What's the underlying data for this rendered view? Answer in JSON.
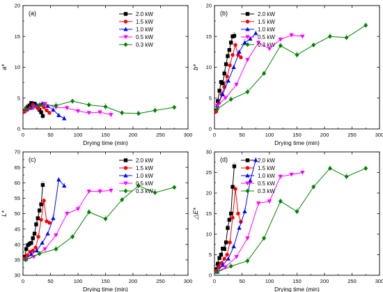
{
  "legend_order": [
    "2.0 kW",
    "1.5 kW",
    "1.0 kW",
    "0.5 kW",
    "0.3 kW"
  ],
  "series_style": {
    "2.0 kW": {
      "color": "#000000",
      "marker": "square"
    },
    "1.5 kW": {
      "color": "#ff0000",
      "marker": "circle"
    },
    "1.0 kW": {
      "color": "#0000ff",
      "marker": "triangle-up"
    },
    "0.5 kW": {
      "color": "#ff00ff",
      "marker": "triangle-down"
    },
    "0.3 kW": {
      "color": "#008000",
      "marker": "diamond"
    }
  },
  "chart_data": [
    {
      "type": "line",
      "panel_label": "(a)",
      "xlabel": "Drying time (min)",
      "ylabel": "a*",
      "xlim": [
        0,
        300
      ],
      "ylim": [
        0,
        20
      ],
      "xticks": [
        0,
        50,
        100,
        150,
        200,
        250,
        300
      ],
      "yticks": [
        0,
        5,
        10,
        15,
        20
      ],
      "legend_position": "top-right",
      "grid": false,
      "series": [
        {
          "name": "2.0 kW",
          "x": [
            3,
            6,
            9,
            12,
            15,
            18,
            21,
            24,
            27,
            30,
            33,
            36
          ],
          "y": [
            2.9,
            3.3,
            3.6,
            3.8,
            4.2,
            3.9,
            4.1,
            3.7,
            3.5,
            3.1,
            2.7,
            2.1
          ]
        },
        {
          "name": "1.5 kW",
          "x": [
            3,
            8,
            13,
            18,
            23,
            28,
            33,
            38,
            43,
            48
          ],
          "y": [
            2.8,
            3.1,
            3.4,
            3.9,
            3.7,
            3.3,
            3.9,
            3.5,
            3.0,
            2.6
          ]
        },
        {
          "name": "1.0 kW",
          "x": [
            5,
            15,
            25,
            35,
            45,
            55,
            65,
            75
          ],
          "y": [
            3.2,
            3.4,
            3.9,
            4.1,
            3.7,
            3.1,
            2.2,
            1.7
          ]
        },
        {
          "name": "0.5 kW",
          "x": [
            5,
            20,
            40,
            60,
            80,
            100,
            120,
            140,
            160
          ],
          "y": [
            3.0,
            3.5,
            4.1,
            3.5,
            3.4,
            2.9,
            2.6,
            2.7,
            2.3
          ]
        },
        {
          "name": "0.3 kW",
          "x": [
            5,
            30,
            60,
            90,
            120,
            150,
            180,
            210,
            240,
            275
          ],
          "y": [
            3.2,
            3.9,
            3.8,
            4.5,
            3.9,
            3.6,
            2.6,
            2.5,
            3.0,
            3.5
          ]
        }
      ]
    },
    {
      "type": "line",
      "panel_label": "(b)",
      "xlabel": "Drying time (min)",
      "ylabel": "b*",
      "xlim": [
        0,
        300
      ],
      "ylim": [
        0,
        20
      ],
      "xticks": [
        0,
        50,
        100,
        150,
        200,
        250,
        300
      ],
      "yticks": [
        0,
        5,
        10,
        15,
        20
      ],
      "legend_position": "top-left",
      "grid": false,
      "series": [
        {
          "name": "2.0 kW",
          "x": [
            3,
            6,
            9,
            12,
            15,
            18,
            21,
            24,
            27,
            30,
            33,
            36
          ],
          "y": [
            3.0,
            4.5,
            6.2,
            7.6,
            7.4,
            9.0,
            10.5,
            11.8,
            12.8,
            14.0,
            15.0,
            15.1
          ]
        },
        {
          "name": "1.5 kW",
          "x": [
            3,
            8,
            13,
            18,
            23,
            28,
            33,
            38,
            43,
            48
          ],
          "y": [
            2.8,
            4.2,
            5.6,
            6.8,
            8.5,
            10.3,
            12.0,
            13.6,
            12.0,
            11.6
          ]
        },
        {
          "name": "1.0 kW",
          "x": [
            5,
            15,
            25,
            35,
            45,
            55,
            65,
            75
          ],
          "y": [
            3.8,
            5.6,
            7.8,
            10.0,
            12.5,
            14.0,
            14.6,
            15.5
          ]
        },
        {
          "name": "0.5 kW",
          "x": [
            5,
            20,
            40,
            60,
            80,
            100,
            120,
            140,
            160
          ],
          "y": [
            3.8,
            5.0,
            7.2,
            11.2,
            14.0,
            13.0,
            14.5,
            15.2,
            15.0
          ]
        },
        {
          "name": "0.3 kW",
          "x": [
            5,
            30,
            60,
            90,
            120,
            150,
            180,
            210,
            240,
            275
          ],
          "y": [
            3.2,
            4.8,
            6.0,
            9.0,
            13.5,
            12.0,
            13.6,
            15.0,
            14.8,
            16.8
          ]
        }
      ]
    },
    {
      "type": "line",
      "panel_label": "(c)",
      "xlabel": "Drying time (min)",
      "ylabel": "L*",
      "xlim": [
        0,
        300
      ],
      "ylim": [
        30,
        70
      ],
      "xticks": [
        0,
        50,
        100,
        150,
        200,
        250,
        300
      ],
      "yticks": [
        30,
        35,
        40,
        45,
        50,
        55,
        60,
        65,
        70
      ],
      "legend_position": "top-right",
      "grid": false,
      "series": [
        {
          "name": "2.0 kW",
          "x": [
            3,
            6,
            9,
            12,
            15,
            18,
            21,
            24,
            27,
            30,
            33,
            36
          ],
          "y": [
            36.0,
            38.5,
            39.8,
            40.2,
            40.5,
            42.0,
            43.5,
            46.5,
            48.5,
            51.0,
            53.0,
            59.3
          ]
        },
        {
          "name": "1.5 kW",
          "x": [
            3,
            8,
            13,
            18,
            23,
            28,
            33,
            38,
            43,
            48
          ],
          "y": [
            35.5,
            36.5,
            37.6,
            38.0,
            39.0,
            42.5,
            48.0,
            54.2,
            47.5,
            47.0
          ]
        },
        {
          "name": "1.0 kW",
          "x": [
            5,
            15,
            25,
            35,
            45,
            55,
            65,
            75
          ],
          "y": [
            35.2,
            36.8,
            38.0,
            40.5,
            43.5,
            48.5,
            61.0,
            59.0
          ]
        },
        {
          "name": "0.5 kW",
          "x": [
            5,
            20,
            40,
            60,
            80,
            100,
            120,
            140,
            160
          ],
          "y": [
            35.0,
            36.0,
            38.5,
            43.0,
            50.0,
            51.5,
            57.2,
            57.2,
            57.5
          ]
        },
        {
          "name": "0.3 kW",
          "x": [
            5,
            30,
            60,
            90,
            120,
            150,
            180,
            210,
            240,
            275
          ],
          "y": [
            35.0,
            37.0,
            38.5,
            42.5,
            50.5,
            48.3,
            54.5,
            59.0,
            56.8,
            58.5
          ]
        }
      ]
    },
    {
      "type": "line",
      "panel_label": "(d)",
      "xlabel": "Drying time (min)",
      "ylabel": "△E*",
      "xlim": [
        0,
        300
      ],
      "ylim": [
        0,
        30
      ],
      "xticks": [
        0,
        50,
        100,
        150,
        200,
        250,
        300
      ],
      "yticks": [
        0,
        5,
        10,
        15,
        20,
        25,
        30
      ],
      "legend_position": "top-left",
      "grid": false,
      "series": [
        {
          "name": "2.0 kW",
          "x": [
            3,
            6,
            9,
            12,
            15,
            18,
            21,
            24,
            27,
            30,
            33,
            36
          ],
          "y": [
            1.5,
            2.8,
            4.2,
            5.0,
            6.5,
            6.4,
            8.0,
            11.5,
            13.5,
            15.0,
            21.5,
            26.5
          ]
        },
        {
          "name": "1.5 kW",
          "x": [
            3,
            8,
            13,
            18,
            23,
            28,
            33,
            38,
            43,
            48
          ],
          "y": [
            1.0,
            2.0,
            3.0,
            4.0,
            5.0,
            8.0,
            14.0,
            21.0,
            15.0,
            13.0
          ]
        },
        {
          "name": "1.0 kW",
          "x": [
            5,
            15,
            25,
            35,
            45,
            55,
            65,
            75
          ],
          "y": [
            0.8,
            2.5,
            4.0,
            7.0,
            11.5,
            15.5,
            23.0,
            28.0
          ]
        },
        {
          "name": "0.5 kW",
          "x": [
            5,
            20,
            40,
            60,
            80,
            100,
            120,
            140,
            160
          ],
          "y": [
            0.8,
            2.0,
            4.5,
            9.0,
            17.5,
            18.0,
            24.0,
            24.5,
            25.0
          ]
        },
        {
          "name": "0.3 kW",
          "x": [
            5,
            30,
            60,
            90,
            120,
            150,
            180,
            210,
            240,
            275
          ],
          "y": [
            0.8,
            2.2,
            3.5,
            9.0,
            18.0,
            15.5,
            21.5,
            26.0,
            24.0,
            26.0
          ]
        }
      ]
    }
  ]
}
